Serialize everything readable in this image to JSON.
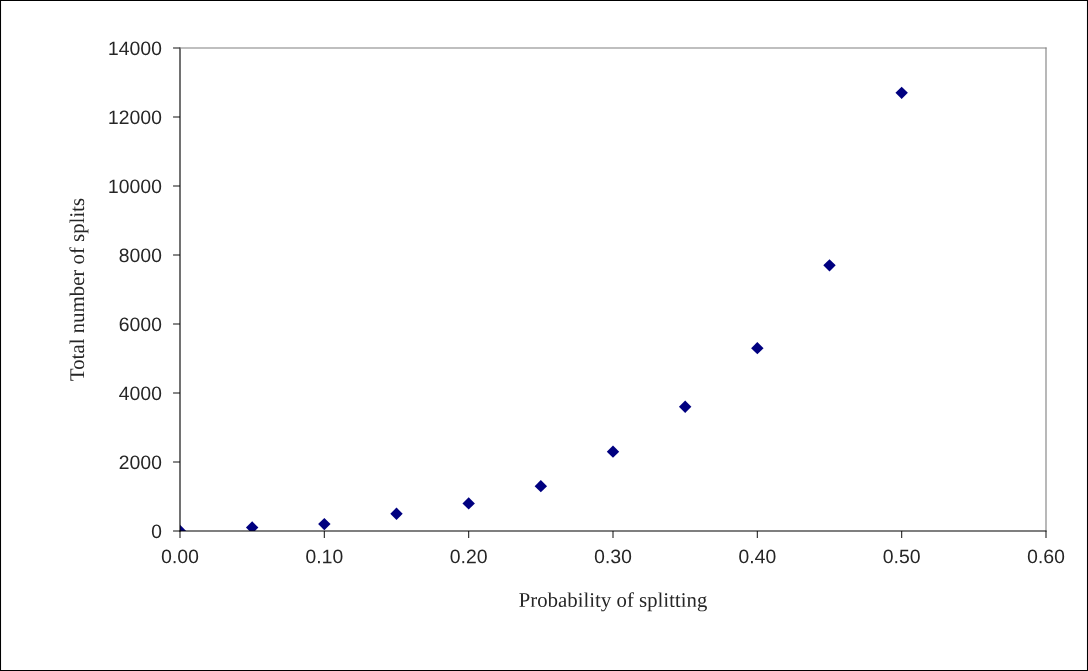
{
  "chart_data": {
    "type": "scatter",
    "xlabel": "Probability of splitting",
    "ylabel": "Total number of splits",
    "x": [
      0.0,
      0.05,
      0.1,
      0.15,
      0.2,
      0.25,
      0.3,
      0.35,
      0.4,
      0.45,
      0.5
    ],
    "series": [
      {
        "color": "#000080",
        "values": [
          0,
          100,
          200,
          500,
          800,
          1300,
          2300,
          3600,
          5300,
          7700,
          12700
        ]
      }
    ],
    "xlim": [
      0,
      0.6
    ],
    "xticks": [
      {
        "value": 0,
        "label": "0.00"
      },
      {
        "value": 0.1,
        "label": "0.10"
      },
      {
        "value": 0.2,
        "label": "0.20"
      },
      {
        "value": 0.3,
        "label": "0.30"
      },
      {
        "value": 0.4,
        "label": "0.40"
      },
      {
        "value": 0.5,
        "label": "0.50"
      },
      {
        "value": 0.6,
        "label": "0.60"
      }
    ],
    "ylim": [
      0,
      14000
    ],
    "yticks": [
      0,
      2000,
      4000,
      6000,
      8000,
      10000,
      12000,
      14000
    ],
    "marker": "diamond",
    "grid": false,
    "legend": false
  }
}
